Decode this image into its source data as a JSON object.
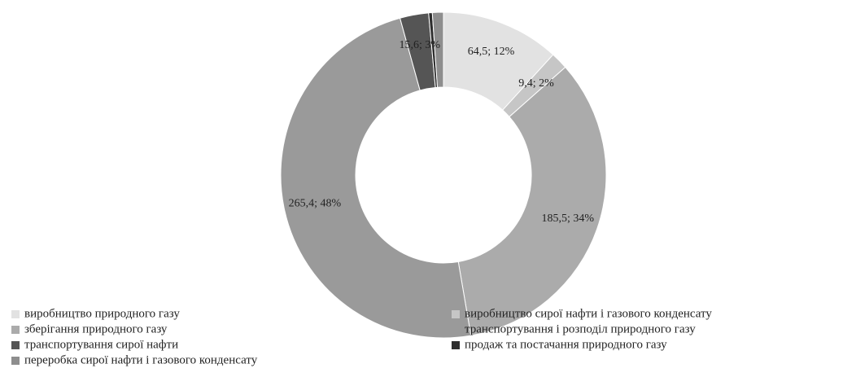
{
  "chart_data": {
    "type": "donut",
    "categories": [
      "виробництво природного газу",
      "виробництво сирої нафти і газового конденсату",
      "зберігання природного газу",
      "транспортування і розподіл природного газу",
      "транспортування сирої нафти",
      "продаж та постачання природного газу",
      "переробка сирої нафти і газового конденсату"
    ],
    "values": [
      64.5,
      9.4,
      185.5,
      265.4,
      15.6,
      2,
      6
    ],
    "value_labels": [
      "64,5; 12%",
      "9,4; 2%",
      "185,5; 34%",
      "265,4; 48%",
      "15,6; 3%",
      null,
      null
    ],
    "colors": [
      "#e2e2e2",
      "#c6c6c6",
      "#ababab",
      "#9a9a9a",
      "#555555",
      "#2e2e2e",
      "#8e8e8e"
    ],
    "legend": "bottom"
  }
}
